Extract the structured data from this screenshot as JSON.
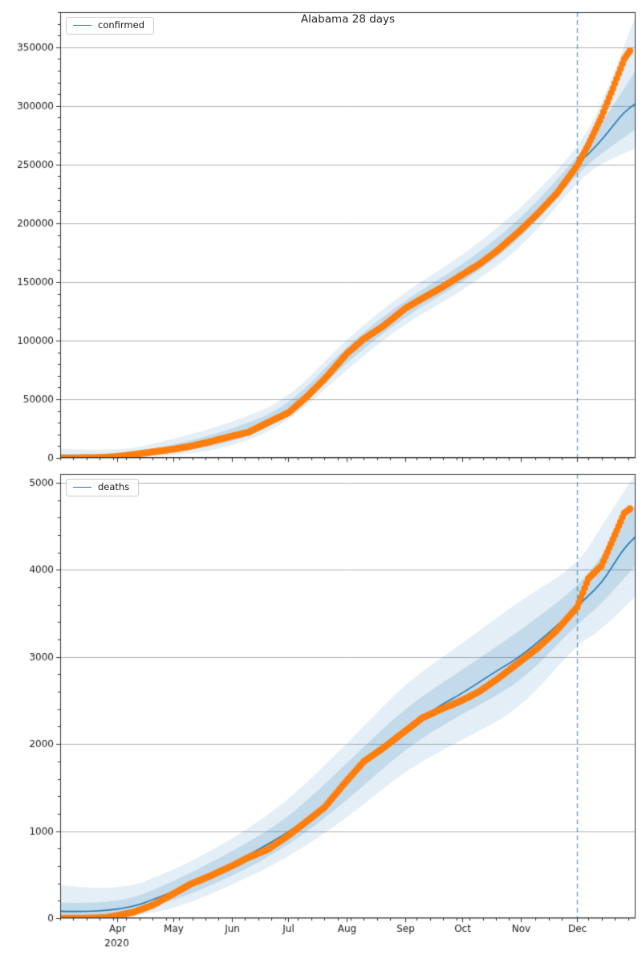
{
  "colors": {
    "actual_dots": "#ff7f0e",
    "forecast_line": "#1f77b4",
    "band_outer": "rgba(31,119,180,0.12)",
    "band_inner": "rgba(31,119,180,0.17)",
    "grid": "#b0b0b0",
    "spine": "#333333",
    "text": "#1a1a1a",
    "vline": "rgba(31,119,180,0.7)"
  },
  "x_axis": {
    "epoch_label": "2020",
    "epoch_label_day": 31,
    "xlim": [
      1,
      306
    ],
    "minor_tick_interval_days": 7,
    "forecast_start_day": 275,
    "major_ticks": [
      {
        "day": 31,
        "label": "Apr"
      },
      {
        "day": 61,
        "label": "May"
      },
      {
        "day": 92,
        "label": "Jun"
      },
      {
        "day": 122,
        "label": "Jul"
      },
      {
        "day": 153,
        "label": "Aug"
      },
      {
        "day": 184,
        "label": "Sep"
      },
      {
        "day": 214,
        "label": "Oct"
      },
      {
        "day": 245,
        "label": "Nov"
      },
      {
        "day": 275,
        "label": "Dec"
      }
    ]
  },
  "chart_data": [
    {
      "type": "line",
      "name": "confirmed",
      "title": "Alabama 28 days",
      "legend_label": "confirmed",
      "ylim": [
        0,
        380000
      ],
      "y_major_ticks": [
        0,
        50000,
        100000,
        150000,
        200000,
        250000,
        300000,
        350000
      ],
      "y_minor_interval": 10000,
      "actual": {
        "x": [
          1,
          12,
          19,
          26,
          31,
          40,
          50,
          61,
          70,
          80,
          92,
          101,
          111,
          122,
          131,
          141,
          153,
          162,
          172,
          184,
          193,
          203,
          214,
          223,
          233,
          245,
          254,
          264,
          275,
          281,
          288,
          294,
          300,
          303
        ],
        "y": [
          0,
          50,
          150,
          600,
          1100,
          2900,
          5100,
          7400,
          9900,
          13600,
          18500,
          22000,
          30000,
          38500,
          51000,
          67000,
          89000,
          101500,
          112000,
          127500,
          136000,
          145000,
          156000,
          165000,
          177000,
          194000,
          208000,
          225000,
          249000,
          267000,
          291000,
          315000,
          340000,
          347000
        ]
      },
      "forecast": {
        "x": [
          1,
          12,
          19,
          26,
          31,
          40,
          50,
          61,
          70,
          80,
          92,
          101,
          111,
          122,
          131,
          141,
          153,
          162,
          172,
          184,
          193,
          203,
          214,
          223,
          233,
          245,
          254,
          264,
          275,
          281,
          288,
          294,
          300,
          306
        ],
        "y": [
          0,
          100,
          300,
          700,
          1200,
          2900,
          5100,
          7500,
          10000,
          13700,
          18500,
          22500,
          30500,
          39000,
          51500,
          67500,
          88500,
          101000,
          112500,
          127000,
          136500,
          145500,
          156500,
          166000,
          178000,
          194500,
          208500,
          226000,
          250000,
          259000,
          271000,
          283000,
          295000,
          302000
        ]
      },
      "band_outer": {
        "x": [
          1,
          31,
          61,
          92,
          122,
          153,
          184,
          214,
          245,
          275,
          288,
          306
        ],
        "lo": [
          0,
          0,
          2000,
          9000,
          30000,
          76000,
          115000,
          142000,
          178000,
          235000,
          252000,
          264000
        ],
        "hi": [
          8000,
          5000,
          16000,
          30000,
          50000,
          102000,
          142000,
          172000,
          212000,
          263000,
          300000,
          377000
        ]
      },
      "band_inner": {
        "x": [
          1,
          31,
          61,
          92,
          122,
          153,
          184,
          214,
          245,
          275,
          288,
          306
        ],
        "lo": [
          0,
          200,
          4500,
          13000,
          34000,
          82000,
          121000,
          149000,
          186000,
          242000,
          260000,
          280000
        ],
        "hi": [
          3500,
          2500,
          11000,
          24000,
          44000,
          96000,
          135000,
          164000,
          203000,
          256000,
          285000,
          330000
        ]
      }
    },
    {
      "type": "line",
      "name": "deaths",
      "title": "",
      "legend_label": "deaths",
      "ylim": [
        0,
        5100
      ],
      "y_major_ticks": [
        0,
        1000,
        2000,
        3000,
        4000,
        5000
      ],
      "y_minor_interval": 200,
      "actual": {
        "x": [
          1,
          12,
          19,
          26,
          31,
          40,
          50,
          61,
          70,
          80,
          92,
          101,
          111,
          122,
          131,
          141,
          153,
          162,
          172,
          184,
          193,
          203,
          214,
          223,
          233,
          245,
          254,
          264,
          275,
          281,
          288,
          294,
          300,
          303
        ],
        "y": [
          0,
          0,
          1,
          10,
          30,
          70,
          150,
          280,
          390,
          480,
          600,
          700,
          790,
          950,
          1100,
          1270,
          1580,
          1800,
          1950,
          2150,
          2300,
          2400,
          2500,
          2600,
          2750,
          2950,
          3100,
          3300,
          3570,
          3900,
          4050,
          4350,
          4650,
          4700
        ]
      },
      "forecast": {
        "x": [
          1,
          31,
          61,
          92,
          122,
          141,
          153,
          172,
          184,
          203,
          214,
          233,
          245,
          264,
          275,
          281,
          288,
          294,
          300,
          306
        ],
        "y": [
          80,
          60,
          300,
          620,
          980,
          1300,
          1560,
          1980,
          2180,
          2450,
          2580,
          2850,
          3000,
          3350,
          3580,
          3700,
          3850,
          4050,
          4250,
          4380
        ]
      },
      "band_outer": {
        "x": [
          1,
          31,
          61,
          92,
          122,
          153,
          184,
          214,
          245,
          275,
          288,
          306
        ],
        "lo": [
          0,
          0,
          100,
          380,
          700,
          1150,
          1700,
          2050,
          2400,
          3150,
          3300,
          3700
        ],
        "hi": [
          380,
          300,
          550,
          900,
          1350,
          2000,
          2700,
          3150,
          3650,
          4050,
          4500,
          5100
        ]
      },
      "band_inner": {
        "x": [
          1,
          31,
          61,
          92,
          122,
          153,
          184,
          214,
          245,
          275,
          288,
          306
        ],
        "lo": [
          0,
          10,
          200,
          480,
          830,
          1350,
          1950,
          2350,
          2700,
          3380,
          3600,
          4050
        ],
        "hi": [
          180,
          150,
          420,
          760,
          1150,
          1780,
          2420,
          2850,
          3300,
          3800,
          4150,
          4750
        ]
      }
    }
  ]
}
